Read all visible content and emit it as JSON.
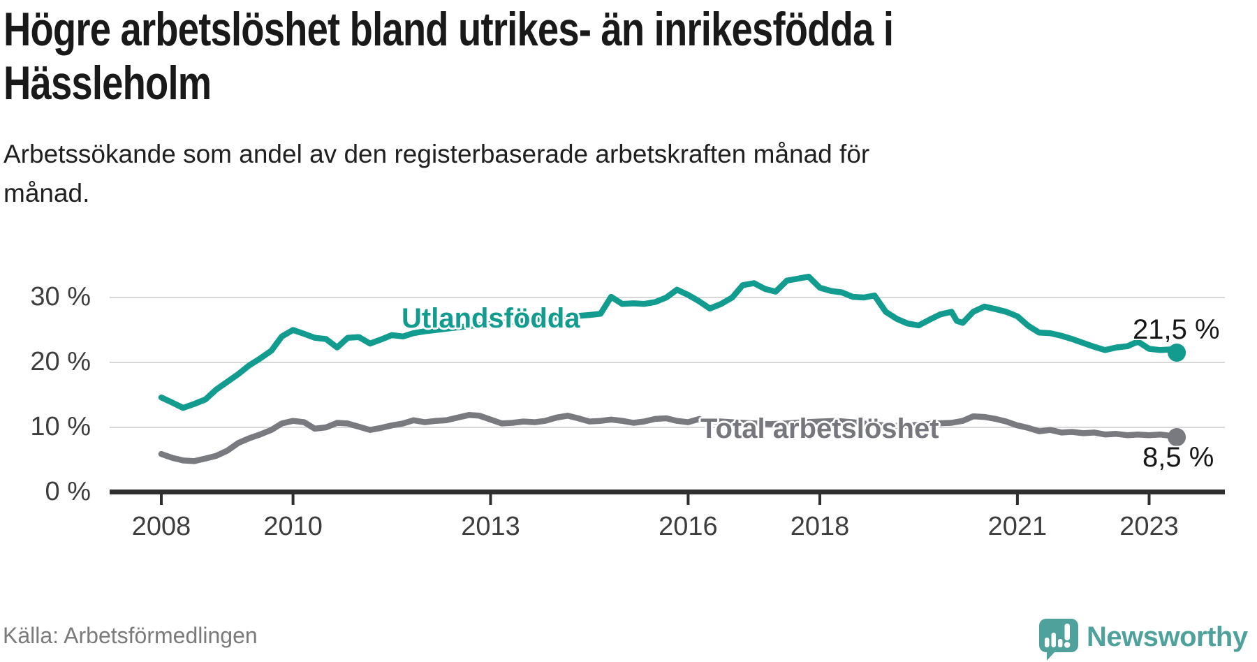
{
  "header": {
    "title": "Högre arbetslöshet bland utrikes- än inrikesfödda i Hässleholm",
    "title_lines": [
      "Högre arbetslöshet bland utrikes- än inrikesfödda i",
      "Hässleholm"
    ],
    "subtitle": "Arbetssökande som andel av den registerbaserade arbetskraften månad för månad.",
    "subtitle_lines": [
      "Arbetssökande som andel av den registerbaserade arbetskraften månad för",
      "månad."
    ]
  },
  "footer": {
    "source": "Källa: Arbetsförmedlingen",
    "brand": "Newsworthy",
    "logo_icon": "newsworthy-speech-bubble-barchart-icon"
  },
  "colors": {
    "series_utlandsfodda": "#129c90",
    "series_total": "#797a80",
    "grid": "#d8d8d8",
    "axis": "#2f2f2f",
    "tick_text": "#3d3d3d",
    "title_text": "#191919",
    "source_text": "#7a7a7a",
    "brand_teal": "#4fa29b",
    "background": "#ffffff"
  },
  "chart_data": {
    "type": "line",
    "title": "Högre arbetslöshet bland utrikes- än inrikesfödda i Hässleholm",
    "xlabel": "",
    "ylabel": "",
    "grid": true,
    "legend_position": "inline-labels",
    "x_axis": {
      "tick_years": [
        2008,
        2010,
        2013,
        2016,
        2018,
        2021,
        2023
      ],
      "range": [
        2007.2,
        2024.2
      ]
    },
    "y_axis": {
      "ticks": [
        {
          "value": 0,
          "label": "0 %"
        },
        {
          "value": 10,
          "label": "10 %"
        },
        {
          "value": 20,
          "label": "20 %"
        },
        {
          "value": 30,
          "label": "30 %"
        }
      ],
      "range": [
        0,
        35.5
      ]
    },
    "series": [
      {
        "name": "Utlandsfödda",
        "color": "#129c90",
        "end_value": 21.5,
        "end_label": "21,5 %",
        "points": [
          [
            2008.0,
            14.6
          ],
          [
            2008.17,
            13.8
          ],
          [
            2008.33,
            13.0
          ],
          [
            2008.5,
            13.6
          ],
          [
            2008.67,
            14.3
          ],
          [
            2008.83,
            15.8
          ],
          [
            2009.0,
            17.0
          ],
          [
            2009.17,
            18.2
          ],
          [
            2009.33,
            19.5
          ],
          [
            2009.5,
            20.6
          ],
          [
            2009.67,
            21.8
          ],
          [
            2009.83,
            24.0
          ],
          [
            2010.0,
            25.0
          ],
          [
            2010.17,
            24.4
          ],
          [
            2010.33,
            23.8
          ],
          [
            2010.5,
            23.6
          ],
          [
            2010.67,
            22.3
          ],
          [
            2010.83,
            23.8
          ],
          [
            2011.0,
            23.9
          ],
          [
            2011.17,
            22.9
          ],
          [
            2011.33,
            23.5
          ],
          [
            2011.5,
            24.2
          ],
          [
            2011.67,
            24.0
          ],
          [
            2011.83,
            24.5
          ],
          [
            2012.0,
            24.8
          ],
          [
            2012.25,
            25.1
          ],
          [
            2012.5,
            25.4
          ],
          [
            2012.75,
            25.7
          ],
          [
            2013.0,
            25.9
          ],
          [
            2013.25,
            26.2
          ],
          [
            2013.5,
            26.4
          ],
          [
            2013.75,
            26.7
          ],
          [
            2014.0,
            26.9
          ],
          [
            2014.25,
            27.1
          ],
          [
            2014.5,
            27.3
          ],
          [
            2014.67,
            27.5
          ],
          [
            2014.83,
            30.1
          ],
          [
            2015.0,
            29.0
          ],
          [
            2015.17,
            29.1
          ],
          [
            2015.33,
            29.0
          ],
          [
            2015.5,
            29.3
          ],
          [
            2015.67,
            30.0
          ],
          [
            2015.83,
            31.2
          ],
          [
            2016.0,
            30.4
          ],
          [
            2016.17,
            29.4
          ],
          [
            2016.33,
            28.3
          ],
          [
            2016.5,
            29.0
          ],
          [
            2016.67,
            30.0
          ],
          [
            2016.83,
            31.9
          ],
          [
            2017.0,
            32.2
          ],
          [
            2017.17,
            31.3
          ],
          [
            2017.33,
            30.9
          ],
          [
            2017.5,
            32.6
          ],
          [
            2017.67,
            32.9
          ],
          [
            2017.83,
            33.2
          ],
          [
            2018.0,
            31.5
          ],
          [
            2018.17,
            31.0
          ],
          [
            2018.33,
            30.8
          ],
          [
            2018.5,
            30.1
          ],
          [
            2018.67,
            30.0
          ],
          [
            2018.83,
            30.3
          ],
          [
            2019.0,
            27.8
          ],
          [
            2019.17,
            26.7
          ],
          [
            2019.33,
            26.0
          ],
          [
            2019.5,
            25.7
          ],
          [
            2019.67,
            26.6
          ],
          [
            2019.83,
            27.4
          ],
          [
            2020.0,
            27.8
          ],
          [
            2020.08,
            26.4
          ],
          [
            2020.17,
            26.1
          ],
          [
            2020.33,
            27.8
          ],
          [
            2020.5,
            28.6
          ],
          [
            2020.67,
            28.2
          ],
          [
            2020.83,
            27.8
          ],
          [
            2021.0,
            27.1
          ],
          [
            2021.17,
            25.6
          ],
          [
            2021.33,
            24.6
          ],
          [
            2021.5,
            24.5
          ],
          [
            2021.67,
            24.1
          ],
          [
            2021.83,
            23.6
          ],
          [
            2022.0,
            23.0
          ],
          [
            2022.17,
            22.4
          ],
          [
            2022.33,
            21.9
          ],
          [
            2022.5,
            22.3
          ],
          [
            2022.67,
            22.5
          ],
          [
            2022.83,
            23.2
          ],
          [
            2023.0,
            22.1
          ],
          [
            2023.17,
            21.9
          ],
          [
            2023.33,
            22.0
          ],
          [
            2023.42,
            21.5
          ]
        ]
      },
      {
        "name": "Total arbetslöshet",
        "color": "#797a80",
        "end_value": 8.5,
        "end_label": "8,5 %",
        "points": [
          [
            2008.0,
            5.9
          ],
          [
            2008.17,
            5.3
          ],
          [
            2008.33,
            4.9
          ],
          [
            2008.5,
            4.8
          ],
          [
            2008.67,
            5.2
          ],
          [
            2008.83,
            5.6
          ],
          [
            2009.0,
            6.4
          ],
          [
            2009.17,
            7.6
          ],
          [
            2009.33,
            8.3
          ],
          [
            2009.5,
            8.9
          ],
          [
            2009.67,
            9.6
          ],
          [
            2009.83,
            10.6
          ],
          [
            2010.0,
            11.0
          ],
          [
            2010.17,
            10.8
          ],
          [
            2010.33,
            9.8
          ],
          [
            2010.5,
            10.0
          ],
          [
            2010.67,
            10.7
          ],
          [
            2010.83,
            10.6
          ],
          [
            2011.0,
            10.1
          ],
          [
            2011.17,
            9.6
          ],
          [
            2011.33,
            9.9
          ],
          [
            2011.5,
            10.3
          ],
          [
            2011.67,
            10.6
          ],
          [
            2011.83,
            11.1
          ],
          [
            2012.0,
            10.8
          ],
          [
            2012.17,
            11.0
          ],
          [
            2012.33,
            11.1
          ],
          [
            2012.5,
            11.5
          ],
          [
            2012.67,
            11.9
          ],
          [
            2012.83,
            11.8
          ],
          [
            2013.0,
            11.2
          ],
          [
            2013.17,
            10.6
          ],
          [
            2013.33,
            10.7
          ],
          [
            2013.5,
            10.9
          ],
          [
            2013.67,
            10.8
          ],
          [
            2013.83,
            11.0
          ],
          [
            2014.0,
            11.5
          ],
          [
            2014.17,
            11.8
          ],
          [
            2014.33,
            11.4
          ],
          [
            2014.5,
            10.9
          ],
          [
            2014.67,
            11.0
          ],
          [
            2014.83,
            11.2
          ],
          [
            2015.0,
            11.0
          ],
          [
            2015.17,
            10.7
          ],
          [
            2015.33,
            10.9
          ],
          [
            2015.5,
            11.3
          ],
          [
            2015.67,
            11.4
          ],
          [
            2015.83,
            11.0
          ],
          [
            2016.0,
            10.8
          ],
          [
            2016.17,
            11.3
          ],
          [
            2016.33,
            11.0
          ],
          [
            2016.5,
            10.9
          ],
          [
            2016.67,
            10.8
          ],
          [
            2016.83,
            10.7
          ],
          [
            2017.0,
            10.6
          ],
          [
            2017.25,
            10.5
          ],
          [
            2017.5,
            10.6
          ],
          [
            2017.75,
            10.8
          ],
          [
            2018.0,
            10.9
          ],
          [
            2018.25,
            11.0
          ],
          [
            2018.5,
            10.8
          ],
          [
            2018.75,
            10.5
          ],
          [
            2019.0,
            10.3
          ],
          [
            2019.25,
            10.2
          ],
          [
            2019.5,
            10.4
          ],
          [
            2019.75,
            10.6
          ],
          [
            2020.0,
            10.7
          ],
          [
            2020.17,
            11.0
          ],
          [
            2020.33,
            11.7
          ],
          [
            2020.5,
            11.6
          ],
          [
            2020.67,
            11.3
          ],
          [
            2020.83,
            10.9
          ],
          [
            2021.0,
            10.3
          ],
          [
            2021.17,
            9.9
          ],
          [
            2021.33,
            9.4
          ],
          [
            2021.5,
            9.6
          ],
          [
            2021.67,
            9.2
          ],
          [
            2021.83,
            9.3
          ],
          [
            2022.0,
            9.1
          ],
          [
            2022.17,
            9.2
          ],
          [
            2022.33,
            8.9
          ],
          [
            2022.5,
            9.0
          ],
          [
            2022.67,
            8.8
          ],
          [
            2022.83,
            8.9
          ],
          [
            2023.0,
            8.8
          ],
          [
            2023.17,
            8.9
          ],
          [
            2023.33,
            8.7
          ],
          [
            2023.42,
            8.5
          ]
        ]
      }
    ]
  }
}
